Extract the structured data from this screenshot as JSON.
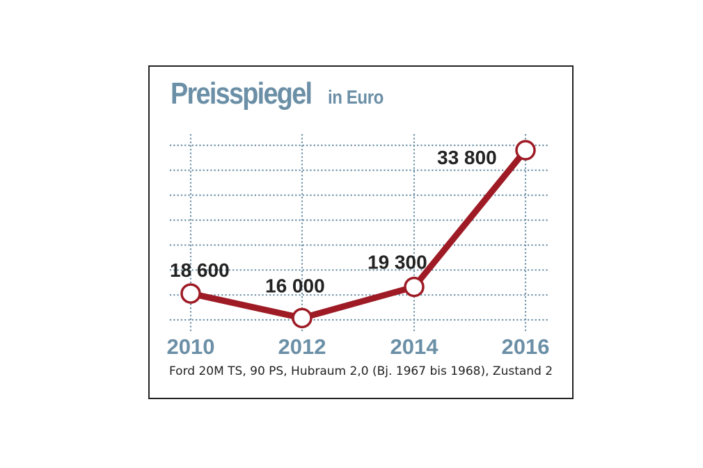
{
  "title": "Preisspiegel",
  "subtitle": "in Euro",
  "caption": "Ford 20M TS, 90 PS, Hubraum 2,0 (Bj. 1967 bis 1968), Zustand 2",
  "colors": {
    "accent": "#6b8fa6",
    "line": "#9e1b25",
    "grid": "#6b8fa6",
    "text": "#222222"
  },
  "chart_data": {
    "type": "line",
    "title": "Preisspiegel in Euro",
    "xlabel": "",
    "ylabel": "",
    "categories": [
      "2010",
      "2012",
      "2014",
      "2016"
    ],
    "values": [
      18600,
      16000,
      19300,
      33800
    ],
    "data_labels": [
      "18 600",
      "16 000",
      "19 300",
      "33 800"
    ],
    "ylim": [
      15950,
      33800
    ],
    "grid": true
  }
}
